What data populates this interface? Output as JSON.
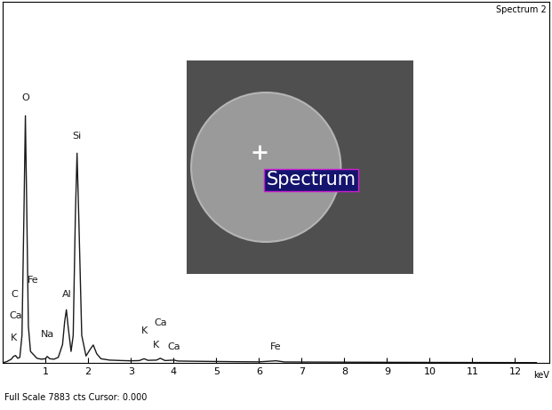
{
  "chart_data": {
    "type": "line",
    "title": "Spectrum 2",
    "footer": "Full Scale 7883 cts Cursor: 0.000",
    "x_label": "keV",
    "inset_label": "Spectrum",
    "x": [
      0.0,
      0.1,
      0.2,
      0.25,
      0.3,
      0.35,
      0.4,
      0.45,
      0.5,
      0.53,
      0.56,
      0.6,
      0.65,
      0.7,
      0.75,
      0.8,
      0.9,
      1.0,
      1.04,
      1.1,
      1.2,
      1.3,
      1.4,
      1.45,
      1.49,
      1.53,
      1.6,
      1.65,
      1.7,
      1.74,
      1.78,
      1.85,
      1.95,
      2.05,
      2.12,
      2.2,
      2.3,
      2.5,
      2.8,
      3.0,
      3.2,
      3.31,
      3.4,
      3.6,
      3.69,
      3.8,
      4.01,
      4.1,
      4.5,
      5.0,
      5.5,
      6.0,
      6.4,
      6.6,
      7.0,
      8.0,
      9.0,
      10.0,
      11.0,
      12.0,
      12.5
    ],
    "values": [
      0,
      30,
      80,
      140,
      160,
      100,
      120,
      600,
      3500,
      5400,
      3500,
      800,
      250,
      200,
      150,
      100,
      80,
      90,
      140,
      90,
      80,
      120,
      400,
      900,
      1160,
      800,
      250,
      600,
      3200,
      4580,
      3200,
      600,
      150,
      300,
      390,
      200,
      90,
      60,
      50,
      45,
      50,
      90,
      55,
      60,
      100,
      50,
      60,
      40,
      35,
      30,
      25,
      22,
      45,
      20,
      18,
      15,
      12,
      10,
      8,
      6,
      5
    ],
    "color": "#1a1a1a",
    "xlim": [
      0,
      12.8
    ],
    "xticks": [
      1,
      2,
      3,
      4,
      5,
      6,
      7,
      8,
      9,
      10,
      11,
      12
    ],
    "ylim": [
      0,
      7883
    ],
    "tick_labels": "x",
    "grid": false,
    "annotations": [
      {
        "text": "O",
        "x": 0.53,
        "y": 5700
      },
      {
        "text": "Si",
        "x": 1.74,
        "y": 4850
      },
      {
        "text": "C",
        "x": 0.28,
        "y": 1400
      },
      {
        "text": "Fe",
        "x": 0.72,
        "y": 1700
      },
      {
        "text": "Ca",
        "x": 0.3,
        "y": 930
      },
      {
        "text": "K",
        "x": 0.25,
        "y": 450
      },
      {
        "text": "Na",
        "x": 1.04,
        "y": 520
      },
      {
        "text": "Al",
        "x": 1.5,
        "y": 1400
      },
      {
        "text": "K",
        "x": 3.31,
        "y": 600
      },
      {
        "text": "Ca",
        "x": 3.69,
        "y": 780
      },
      {
        "text": "K",
        "x": 3.59,
        "y": 290
      },
      {
        "text": "Ca",
        "x": 4.01,
        "y": 250
      },
      {
        "text": "Fe",
        "x": 6.4,
        "y": 250
      }
    ]
  }
}
